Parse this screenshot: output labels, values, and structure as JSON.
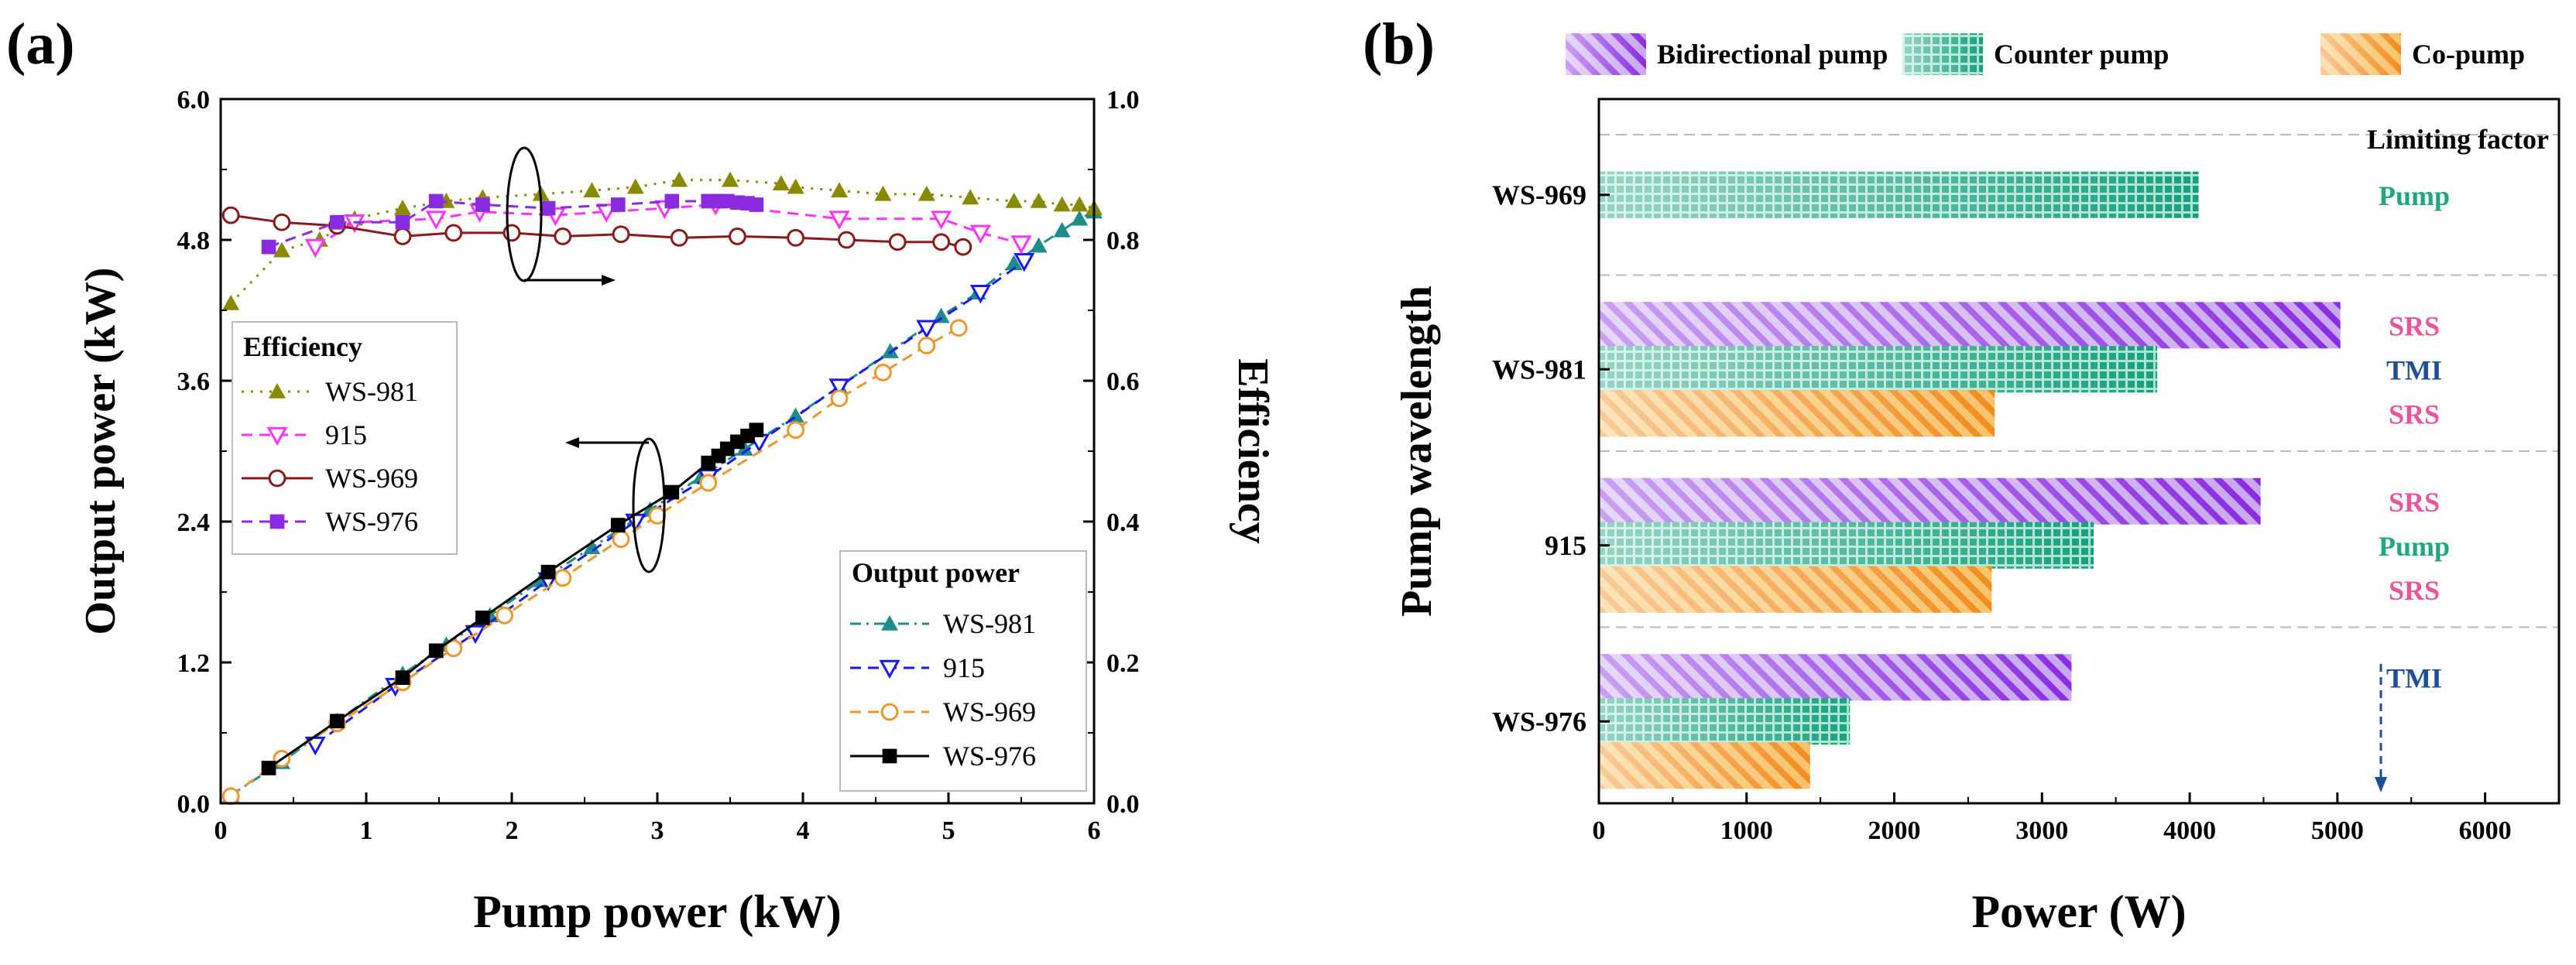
{
  "chart_data": [
    {
      "panel_label": "(a)",
      "type": "line",
      "xlabel": "Pump power (kW)",
      "ylabel": "Output power (kW)",
      "y2label": "Efficiency",
      "xlim": [
        0,
        6
      ],
      "ylim": [
        0,
        6
      ],
      "y2lim": [
        0,
        1
      ],
      "xticks": [
        "0",
        "1",
        "2",
        "3",
        "4",
        "5",
        "6"
      ],
      "yticks": [
        "0.0",
        "1.2",
        "2.4",
        "3.6",
        "4.8",
        "6.0"
      ],
      "y2ticks": [
        "0.0",
        "0.2",
        "0.4",
        "0.6",
        "0.8",
        "1.0"
      ],
      "efficiency_legend_title": "Efficiency",
      "output_legend_title": "Output power",
      "colors": {
        "ws981_eff": "#8a8a00",
        "ws981_out": "#1f8c8c",
        "s915_eff": "#ff33ff",
        "s915_out": "#1a1aee",
        "ws969_eff": "#8b1a1a",
        "ws969_out": "#f0962a",
        "ws976_eff": "#8a2be2",
        "ws976_out": "#000000"
      },
      "efficiency_series": [
        {
          "name": "WS-981",
          "marker": "triangle",
          "dash": "dot",
          "x": [
            0.07,
            0.42,
            0.68,
            0.92,
            1.25,
            1.55,
            1.8,
            2.2,
            2.55,
            2.85,
            3.15,
            3.5,
            3.85,
            3.95,
            4.25,
            4.55,
            4.85,
            5.15,
            5.45,
            5.62,
            5.78,
            5.9,
            6.0
          ],
          "y": [
            0.71,
            0.785,
            0.8,
            0.83,
            0.845,
            0.855,
            0.86,
            0.865,
            0.87,
            0.875,
            0.885,
            0.885,
            0.88,
            0.875,
            0.87,
            0.865,
            0.865,
            0.86,
            0.855,
            0.855,
            0.85,
            0.85,
            0.845
          ]
        },
        {
          "name": "915",
          "marker": "triangle-down-open",
          "dash": "dash",
          "x": [
            0.65,
            0.92,
            1.48,
            1.78,
            2.3,
            2.65,
            3.05,
            3.4,
            4.25,
            4.95,
            5.22,
            5.5
          ],
          "y": [
            0.79,
            0.825,
            0.83,
            0.84,
            0.835,
            0.84,
            0.845,
            0.85,
            0.83,
            0.83,
            0.81,
            0.795
          ]
        },
        {
          "name": "WS-969",
          "marker": "circle-open",
          "dash": "solid",
          "x": [
            0.07,
            0.42,
            0.8,
            1.25,
            1.6,
            2.0,
            2.35,
            2.75,
            3.15,
            3.55,
            3.95,
            4.3,
            4.65,
            4.95,
            5.1
          ],
          "y": [
            0.835,
            0.825,
            0.82,
            0.805,
            0.81,
            0.81,
            0.805,
            0.808,
            0.803,
            0.805,
            0.803,
            0.8,
            0.797,
            0.797,
            0.79
          ]
        },
        {
          "name": "WS-976",
          "marker": "square",
          "dash": "dash",
          "x": [
            0.33,
            0.8,
            1.25,
            1.48,
            1.8,
            2.25,
            2.73,
            3.1,
            3.35,
            3.42,
            3.48,
            3.55,
            3.62,
            3.68
          ],
          "y": [
            0.79,
            0.825,
            0.825,
            0.855,
            0.85,
            0.845,
            0.85,
            0.855,
            0.855,
            0.855,
            0.855,
            0.853,
            0.852,
            0.85
          ]
        }
      ],
      "output_series": [
        {
          "name": "WS-981",
          "marker": "triangle",
          "dash": "dashdot",
          "x": [
            0.07,
            0.42,
            0.8,
            1.25,
            1.55,
            1.85,
            2.2,
            2.55,
            2.95,
            3.3,
            3.6,
            3.95,
            4.25,
            4.6,
            4.95,
            5.2,
            5.45,
            5.62,
            5.78,
            5.9,
            6.0
          ],
          "y": [
            0.07,
            0.35,
            0.7,
            1.1,
            1.35,
            1.6,
            1.9,
            2.18,
            2.5,
            2.78,
            3.02,
            3.3,
            3.55,
            3.85,
            4.15,
            4.35,
            4.6,
            4.75,
            4.88,
            4.98,
            5.04
          ]
        },
        {
          "name": "915",
          "marker": "triangle-down-open",
          "dash": "dash",
          "x": [
            0.65,
            1.2,
            1.75,
            2.25,
            2.85,
            3.35,
            3.7,
            4.25,
            4.85,
            5.22,
            5.52
          ],
          "y": [
            0.5,
            1.0,
            1.45,
            1.9,
            2.4,
            2.78,
            3.08,
            3.55,
            4.05,
            4.35,
            4.62
          ]
        },
        {
          "name": "WS-969",
          "marker": "circle-open",
          "dash": "dash",
          "x": [
            0.07,
            0.42,
            0.8,
            1.25,
            1.6,
            1.95,
            2.35,
            2.75,
            3.0,
            3.35,
            3.95,
            4.25,
            4.55,
            4.85,
            5.07
          ],
          "y": [
            0.06,
            0.38,
            0.68,
            1.03,
            1.32,
            1.6,
            1.92,
            2.25,
            2.45,
            2.73,
            3.18,
            3.45,
            3.67,
            3.9,
            4.05
          ]
        },
        {
          "name": "WS-976",
          "marker": "square",
          "dash": "solid",
          "x": [
            0.33,
            0.8,
            1.25,
            1.48,
            1.8,
            2.25,
            2.73,
            3.1,
            3.35,
            3.42,
            3.48,
            3.55,
            3.62,
            3.68
          ],
          "y": [
            0.3,
            0.7,
            1.07,
            1.3,
            1.58,
            1.97,
            2.37,
            2.65,
            2.9,
            2.96,
            3.02,
            3.08,
            3.13,
            3.18
          ]
        }
      ]
    },
    {
      "panel_label": "(b)",
      "type": "bar",
      "orientation": "horizontal",
      "xlabel": "Power (W)",
      "ylabel": "Pump wavelength",
      "xlim": [
        0,
        6500
      ],
      "xticks": [
        "0",
        "1000",
        "2000",
        "3000",
        "4000",
        "5000",
        "6000"
      ],
      "categories": [
        "WS-969",
        "WS-981",
        "915",
        "WS-976"
      ],
      "limiting_factor_title": "Limiting factor",
      "colors": {
        "bidirectional": "#8a2be2",
        "counter": "#1a9e80",
        "copump": "#f28c1e",
        "srs": "#e8559a",
        "tmi": "#1f4e99",
        "pump": "#1ea87e"
      },
      "series": [
        {
          "name": "Bidirectional pump",
          "values": [
            null,
            5020,
            4480,
            3200
          ],
          "limiting": [
            null,
            "SRS",
            "SRS",
            "TMI"
          ]
        },
        {
          "name": "Counter pump",
          "values": [
            4060,
            3780,
            3350,
            1700
          ],
          "limiting": [
            "Pump",
            "TMI",
            "Pump",
            null
          ]
        },
        {
          "name": "Co-pump",
          "values": [
            null,
            2680,
            2660,
            1430
          ],
          "limiting": [
            null,
            "SRS",
            "SRS",
            null
          ]
        }
      ]
    }
  ]
}
